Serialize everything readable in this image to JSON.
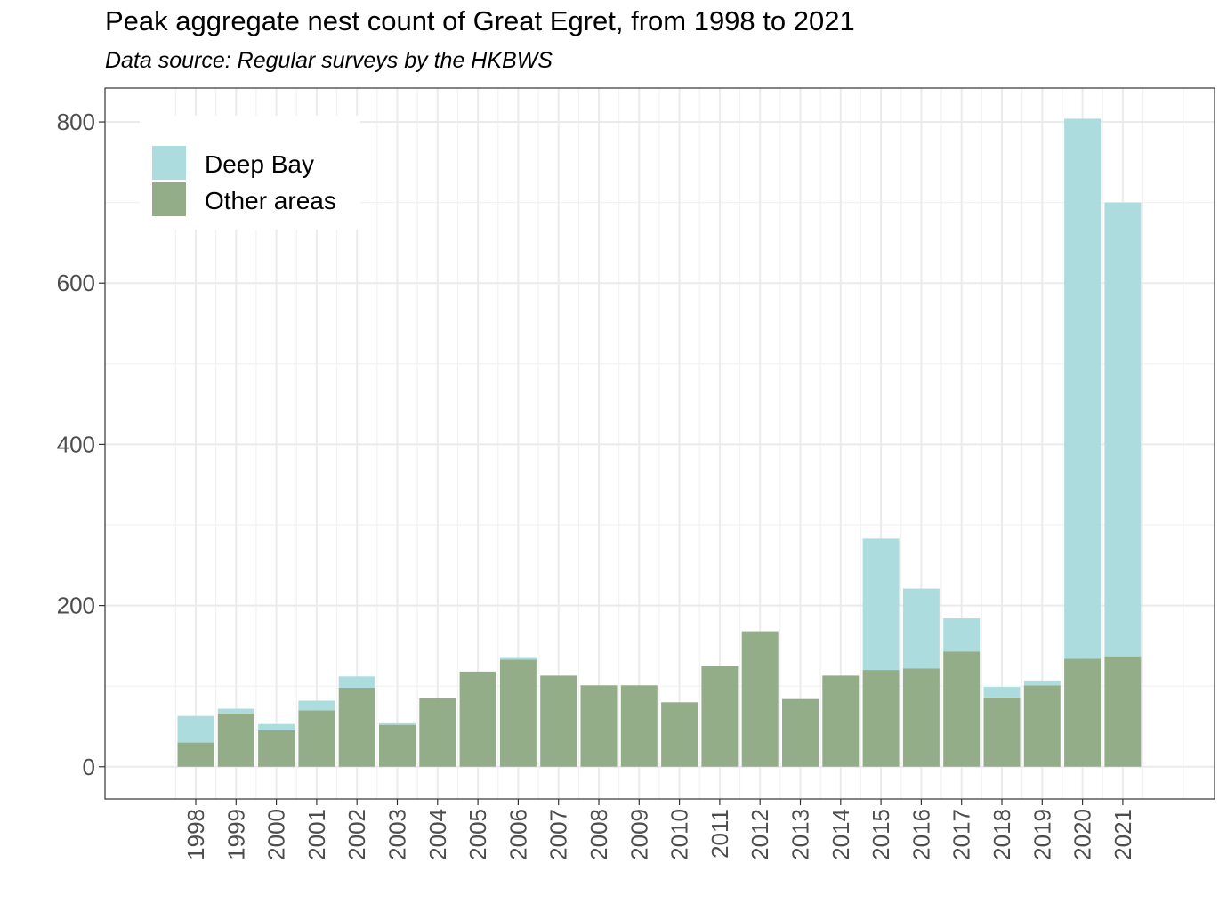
{
  "chart_data": {
    "type": "bar",
    "stacked": true,
    "title": "Peak aggregate nest count of Great Egret, from 1998 to 2021",
    "subtitle": "Data source: Regular surveys by the HKBWS",
    "xlabel": "",
    "ylabel": "",
    "ylim": [
      -40,
      842
    ],
    "yticks": [
      0,
      200,
      400,
      600,
      800
    ],
    "categories": [
      "1998",
      "1999",
      "2000",
      "2001",
      "2002",
      "2003",
      "2004",
      "2005",
      "2006",
      "2007",
      "2008",
      "2009",
      "2010",
      "2011",
      "2012",
      "2013",
      "2014",
      "2015",
      "2016",
      "2017",
      "2018",
      "2019",
      "2020",
      "2021"
    ],
    "series": [
      {
        "name": "Other areas",
        "color": "#92ad88",
        "values": [
          30,
          66,
          45,
          70,
          98,
          52,
          85,
          118,
          133,
          113,
          101,
          101,
          80,
          125,
          168,
          84,
          113,
          120,
          122,
          143,
          86,
          101,
          134,
          137
        ]
      },
      {
        "name": "Deep Bay",
        "color": "#acdcdd",
        "values": [
          33,
          6,
          8,
          12,
          14,
          2,
          0,
          0,
          3,
          0,
          0,
          0,
          0,
          0,
          0,
          0,
          0,
          163,
          99,
          41,
          13,
          6,
          670,
          563
        ]
      }
    ],
    "legend": {
      "position": "top-left",
      "entries": [
        {
          "label": "Deep Bay",
          "color": "#acdcdd"
        },
        {
          "label": "Other areas",
          "color": "#92ad88"
        }
      ]
    },
    "grid": true
  }
}
